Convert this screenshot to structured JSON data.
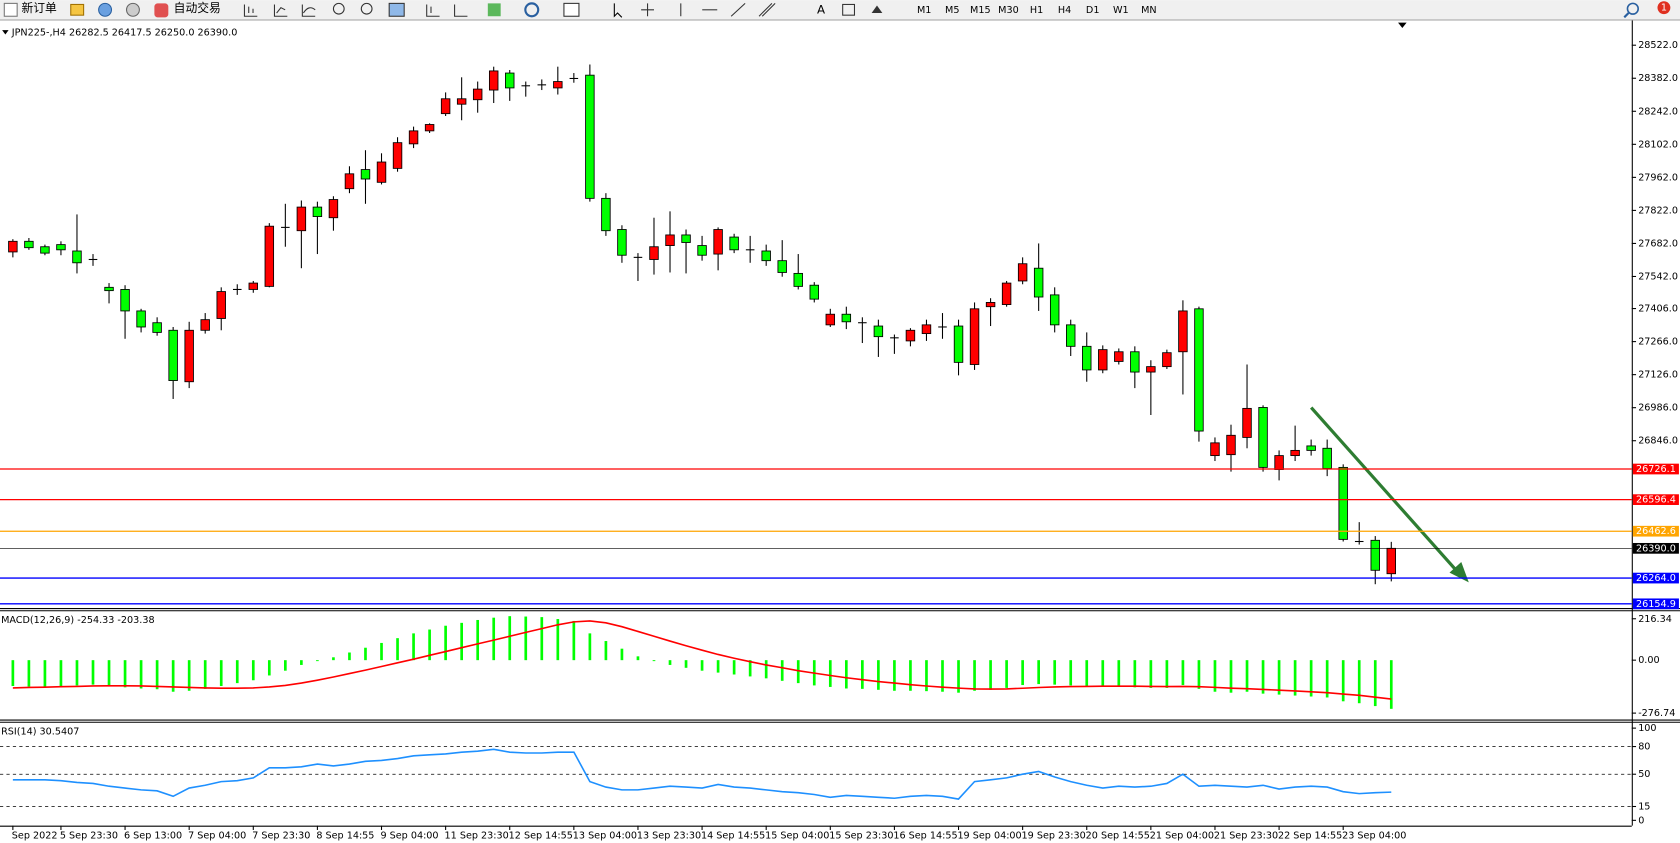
{
  "toolbar": {
    "new_order": "新订单",
    "auto_trading": "自动交易",
    "text_tool": "A",
    "timeframes": [
      "M1",
      "M5",
      "M15",
      "M30",
      "H1",
      "H4",
      "D1",
      "W1",
      "MN"
    ],
    "notifications": 1
  },
  "chart_data": [
    {
      "type": "candlestick",
      "title": "JPN225-,H4  26282.5 26417.5 26250.0 26390.0",
      "up_color": "#ff0000",
      "down_color": "#00ff00",
      "ylim": [
        26137,
        28622
      ],
      "yticks": [
        {
          "value": 28522,
          "label": "28522.0"
        },
        {
          "value": 28382,
          "label": "28382.0"
        },
        {
          "value": 28242,
          "label": "28242.0"
        },
        {
          "value": 28102,
          "label": "28102.0"
        },
        {
          "value": 27962,
          "label": "27962.0"
        },
        {
          "value": 27822,
          "label": "27822.0"
        },
        {
          "value": 27682,
          "label": "27682.0"
        },
        {
          "value": 27542,
          "label": "27542.0"
        },
        {
          "value": 27406,
          "label": "27406.0"
        },
        {
          "value": 27266,
          "label": "27266.0"
        },
        {
          "value": 27126,
          "label": "27126.0"
        },
        {
          "value": 26986,
          "label": "26986.0"
        },
        {
          "value": 26846,
          "label": "26846.0"
        }
      ],
      "categories": [
        "Sep 2022",
        null,
        null,
        "5 Sep 23:30",
        null,
        null,
        null,
        "6 Sep 13:00",
        null,
        null,
        null,
        "7 Sep 04:00",
        null,
        null,
        null,
        "7 Sep 23:30",
        null,
        null,
        null,
        "8 Sep 14:55",
        null,
        null,
        null,
        "9 Sep 04:00",
        null,
        null,
        null,
        "11 Sep 23:30",
        null,
        null,
        null,
        "12 Sep 14:55",
        null,
        null,
        null,
        "13 Sep 04:00",
        null,
        null,
        null,
        "13 Sep 23:30",
        null,
        null,
        null,
        "14 Sep 14:55",
        null,
        null,
        null,
        "15 Sep 04:00",
        null,
        null,
        null,
        "15 Sep 23:30",
        null,
        null,
        null,
        "16 Sep 14:55",
        null,
        null,
        null,
        "19 Sep 04:00",
        null,
        null,
        null,
        "19 Sep 23:30",
        null,
        null,
        null,
        "20 Sep 14:55",
        null,
        null,
        null,
        "21 Sep 04:00",
        null,
        null,
        null,
        "21 Sep 23:30",
        null,
        null,
        null,
        "22 Sep 14:55",
        null,
        null,
        null,
        "23 Sep 04:00",
        null,
        null,
        null
      ],
      "ohlc": [
        [
          27646,
          27700,
          27623,
          27691
        ],
        [
          27691,
          27705,
          27655,
          27664
        ],
        [
          27668,
          27677,
          27632,
          27641
        ],
        [
          27677,
          27691,
          27632,
          27655
        ],
        [
          27650,
          27805,
          27555,
          27600
        ],
        [
          27614,
          27637,
          27587,
          27614
        ],
        [
          27496,
          27514,
          27428,
          27482
        ],
        [
          27487,
          27505,
          27278,
          27396
        ],
        [
          27396,
          27405,
          27305,
          27328
        ],
        [
          27346,
          27369,
          27291,
          27305
        ],
        [
          27314,
          27328,
          27023,
          27101
        ],
        [
          27096,
          27350,
          27069,
          27314
        ],
        [
          27314,
          27387,
          27300,
          27359
        ],
        [
          27364,
          27496,
          27314,
          27478
        ],
        [
          27487,
          27509,
          27464,
          27487
        ],
        [
          27487,
          27523,
          27473,
          27514
        ],
        [
          27500,
          27768,
          27496,
          27755
        ],
        [
          27750,
          27850,
          27668,
          27750
        ],
        [
          27736,
          27864,
          27577,
          27836
        ],
        [
          27836,
          27859,
          27637,
          27796
        ],
        [
          27791,
          27882,
          27736,
          27868
        ],
        [
          27914,
          28009,
          27895,
          27977
        ],
        [
          27995,
          28077,
          27850,
          27955
        ],
        [
          27941,
          28064,
          27932,
          28027
        ],
        [
          28000,
          28132,
          27986,
          28109
        ],
        [
          28104,
          28177,
          28086,
          28159
        ],
        [
          28159,
          28191,
          28150,
          28186
        ],
        [
          28232,
          28322,
          28222,
          28295
        ],
        [
          28272,
          28386,
          28204,
          28295
        ],
        [
          28291,
          28368,
          28236,
          28336
        ],
        [
          28332,
          28431,
          28277,
          28413
        ],
        [
          28404,
          28417,
          28286,
          28341
        ],
        [
          28350,
          28368,
          28304,
          28350
        ],
        [
          28354,
          28377,
          28332,
          28354
        ],
        [
          28341,
          28431,
          28313,
          28368
        ],
        [
          28381,
          28404,
          28363,
          28381
        ],
        [
          28395,
          28440,
          27859,
          27873
        ],
        [
          27873,
          27895,
          27714,
          27736
        ],
        [
          27741,
          27759,
          27600,
          27632
        ],
        [
          27623,
          27641,
          27523,
          27623
        ],
        [
          27614,
          27791,
          27550,
          27668
        ],
        [
          27673,
          27818,
          27559,
          27718
        ],
        [
          27718,
          27741,
          27555,
          27686
        ],
        [
          27673,
          27714,
          27609,
          27632
        ],
        [
          27637,
          27750,
          27568,
          27741
        ],
        [
          27709,
          27723,
          27641,
          27655
        ],
        [
          27655,
          27714,
          27600,
          27655
        ],
        [
          27650,
          27677,
          27587,
          27609
        ],
        [
          27609,
          27696,
          27541,
          27559
        ],
        [
          27555,
          27637,
          27487,
          27500
        ],
        [
          27505,
          27518,
          27432,
          27446
        ],
        [
          27337,
          27405,
          27328,
          27382
        ],
        [
          27382,
          27414,
          27319,
          27350
        ],
        [
          27346,
          27369,
          27260,
          27346
        ],
        [
          27332,
          27359,
          27201,
          27287
        ],
        [
          27282,
          27296,
          27214,
          27282
        ],
        [
          27269,
          27323,
          27246,
          27314
        ],
        [
          27300,
          27359,
          27269,
          27337
        ],
        [
          27328,
          27387,
          27278,
          27328
        ],
        [
          27332,
          27359,
          27123,
          27178
        ],
        [
          27169,
          27432,
          27146,
          27405
        ],
        [
          27414,
          27450,
          27332,
          27432
        ],
        [
          27423,
          27523,
          27414,
          27514
        ],
        [
          27523,
          27623,
          27509,
          27596
        ],
        [
          27577,
          27682,
          27396,
          27455
        ],
        [
          27464,
          27496,
          27305,
          27337
        ],
        [
          27337,
          27359,
          27205,
          27246
        ],
        [
          27246,
          27305,
          27096,
          27146
        ],
        [
          27146,
          27250,
          27132,
          27232
        ],
        [
          27182,
          27237,
          27169,
          27223
        ],
        [
          27223,
          27246,
          27069,
          27137
        ],
        [
          27137,
          27187,
          26955,
          27160
        ],
        [
          27160,
          27232,
          27150,
          27219
        ],
        [
          27223,
          27441,
          27042,
          27396
        ],
        [
          27405,
          27414,
          26842,
          26887
        ],
        [
          26783,
          26860,
          26760,
          26837
        ],
        [
          26787,
          26914,
          26715,
          26869
        ],
        [
          26860,
          27169,
          26814,
          26983
        ],
        [
          26987,
          26996,
          26715,
          26733
        ],
        [
          26724,
          26805,
          26678,
          26783
        ],
        [
          26783,
          26910,
          26760,
          26805
        ],
        [
          26824,
          26851,
          26783,
          26805
        ],
        [
          26814,
          26851,
          26696,
          26728
        ],
        [
          26733,
          26746,
          26419,
          26428
        ],
        [
          26419,
          26501,
          26406,
          26419
        ],
        [
          26424,
          26442,
          26238,
          26297
        ],
        [
          26282.5,
          26417.5,
          26250,
          26390
        ]
      ],
      "hlines": [
        {
          "value": 26726.1,
          "color": "#ff0000"
        },
        {
          "value": 26596.4,
          "color": "#ff0000"
        },
        {
          "value": 26462.6,
          "color": "#ffa500"
        },
        {
          "value": 26390,
          "label": "26390.0",
          "color": "#000000"
        },
        {
          "value": 26264,
          "label": "26264.0",
          "color": "#0000ff"
        },
        {
          "value": 26154.9,
          "color": "#0000ff"
        }
      ]
    },
    {
      "type": "macd",
      "title": "MACD(12,26,9) -254.33 -203.38",
      "ylim": [
        -304.76,
        255.56
      ],
      "yticks": [
        216.34,
        {
          "value": 0,
          "label": "0.00"
        },
        -276.74
      ],
      "histogram": {
        "color": "#00ff00",
        "values": [
          -135,
          -138,
          -138,
          -135,
          -132,
          -128,
          -135,
          -142,
          -148,
          -152,
          -165,
          -160,
          -150,
          -135,
          -120,
          -105,
          -80,
          -55,
          -25,
          -5,
          15,
          40,
          65,
          90,
          115,
          140,
          160,
          180,
          195,
          210,
          222,
          230,
          228,
          225,
          215,
          205,
          140,
          100,
          60,
          20,
          -5,
          -25,
          -40,
          -55,
          -65,
          -75,
          -85,
          -95,
          -108,
          -120,
          -132,
          -140,
          -148,
          -150,
          -155,
          -160,
          -160,
          -162,
          -165,
          -170,
          -160,
          -155,
          -145,
          -130,
          -125,
          -128,
          -132,
          -138,
          -140,
          -140,
          -142,
          -145,
          -145,
          -130,
          -150,
          -165,
          -170,
          -165,
          -175,
          -180,
          -185,
          -190,
          -195,
          -215,
          -225,
          -240,
          -254.33
        ]
      },
      "signal": {
        "color": "#ff0000",
        "values": [
          -145,
          -143,
          -141,
          -139,
          -137,
          -135,
          -134,
          -134,
          -135,
          -137,
          -140,
          -143,
          -145,
          -146,
          -146,
          -145,
          -140,
          -132,
          -120,
          -105,
          -88,
          -70,
          -52,
          -33,
          -14,
          5,
          25,
          45,
          65,
          85,
          105,
          125,
          145,
          165,
          185,
          200,
          205,
          195,
          175,
          150,
          125,
          100,
          75,
          52,
          30,
          10,
          -8,
          -25,
          -40,
          -55,
          -68,
          -80,
          -92,
          -102,
          -112,
          -120,
          -128,
          -135,
          -141,
          -146,
          -150,
          -151,
          -150,
          -147,
          -143,
          -140,
          -138,
          -137,
          -136,
          -136,
          -136,
          -137,
          -138,
          -137,
          -139,
          -142,
          -146,
          -149,
          -153,
          -157,
          -161,
          -165,
          -170,
          -177,
          -184,
          -193,
          -203.38
        ]
      }
    },
    {
      "type": "line",
      "title": "RSI(14) 30.5407",
      "ylim": [
        -5.81,
        104.65
      ],
      "yticks": [
        100,
        80,
        50,
        15,
        0
      ],
      "levels": [
        80,
        50,
        15
      ],
      "color": "#1e90ff",
      "values": [
        44,
        44,
        44,
        43,
        41,
        40,
        37,
        35,
        33,
        32,
        26,
        35,
        38,
        42,
        43,
        46,
        57,
        57,
        58,
        61,
        59,
        61,
        64,
        65,
        67,
        70,
        71,
        72,
        74,
        75,
        77,
        74,
        73,
        73,
        74,
        74,
        42,
        36,
        33,
        33,
        35,
        37,
        36,
        35,
        39,
        36,
        35,
        33,
        31,
        30,
        28,
        25,
        27,
        26,
        25,
        24,
        26,
        27,
        26,
        23,
        42,
        44,
        46,
        50,
        53,
        47,
        42,
        38,
        35,
        37,
        36,
        37,
        40,
        50,
        37,
        38,
        37,
        36,
        38,
        34,
        36,
        37,
        36,
        31,
        29,
        30,
        30.5407
      ]
    }
  ]
}
